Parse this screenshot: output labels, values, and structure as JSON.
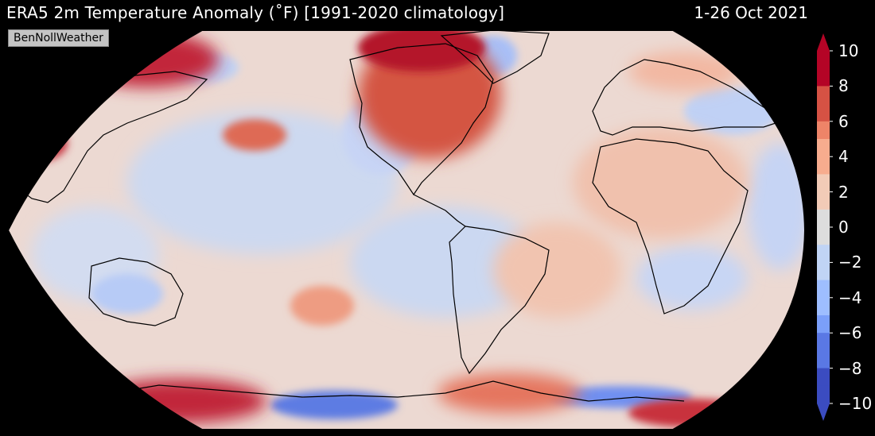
{
  "header": {
    "title": "ERA5 2m Temperature Anomaly (˚F) [1991-2020 climatology]",
    "date": "1-26 Oct 2021"
  },
  "credit": "BenNollWeather",
  "colorbar": {
    "min": -10,
    "max": 10,
    "ticks": [
      {
        "value": 10,
        "label": "10"
      },
      {
        "value": 8,
        "label": "8"
      },
      {
        "value": 6,
        "label": "6"
      },
      {
        "value": 4,
        "label": "4"
      },
      {
        "value": 2,
        "label": "2"
      },
      {
        "value": 0,
        "label": "0"
      },
      {
        "value": -2,
        "label": "−2"
      },
      {
        "value": -4,
        "label": "−4"
      },
      {
        "value": -6,
        "label": "−6"
      },
      {
        "value": -8,
        "label": "−8"
      },
      {
        "value": -10,
        "label": "−10"
      }
    ],
    "colors": [
      "#3b4cc0",
      "#5a78e4",
      "#7b9ff9",
      "#9ebeff",
      "#c0d4f5",
      "#dddddd",
      "#f2cbb7",
      "#f7ac8e",
      "#ee8468",
      "#d65244",
      "#b40426"
    ]
  },
  "map": {
    "projection": "Robinson",
    "ocean_base_color": "#e6d3ce",
    "coastline_color": "#000000"
  }
}
